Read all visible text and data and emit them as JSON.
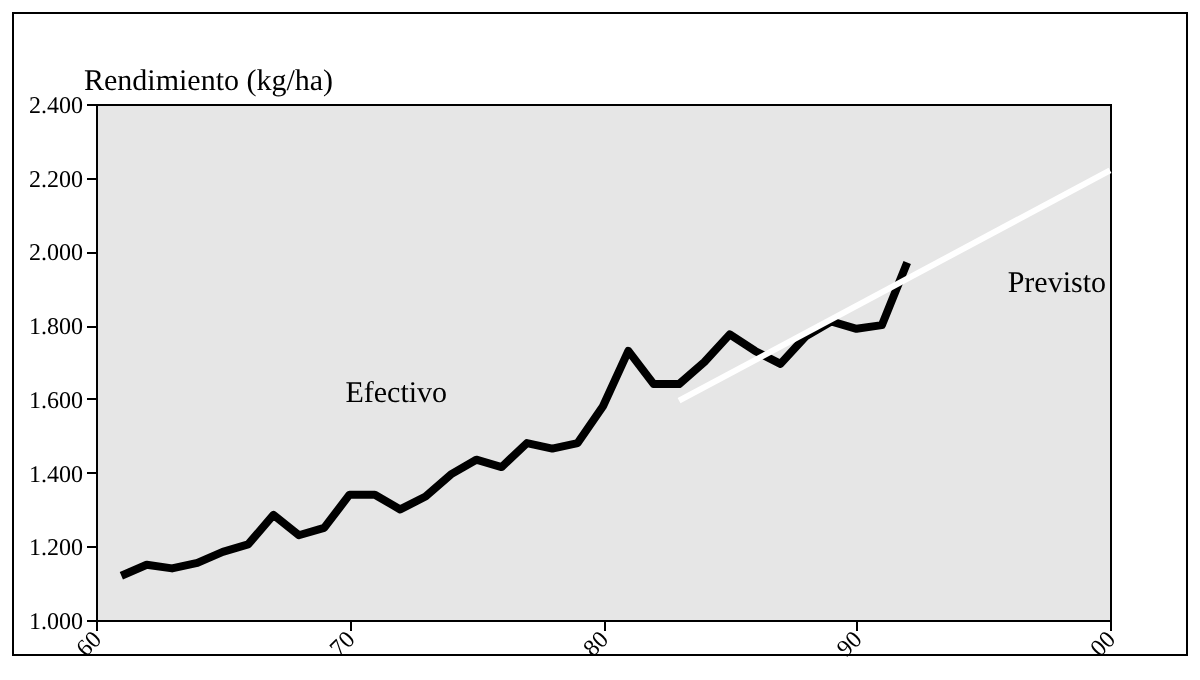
{
  "chart_data": {
    "type": "line",
    "ylabel": "Rendimiento (kg/ha)",
    "xlim": [
      1960,
      2000
    ],
    "xticks": [
      {
        "value": 1960,
        "label": "60"
      },
      {
        "value": 1970,
        "label": "70"
      },
      {
        "value": 1980,
        "label": "80"
      },
      {
        "value": 1990,
        "label": "90"
      },
      {
        "value": 2000,
        "label": "00"
      }
    ],
    "ylim": [
      1000,
      2400
    ],
    "yticks": [
      {
        "value": 1000,
        "label": "1.000"
      },
      {
        "value": 1200,
        "label": "1.200"
      },
      {
        "value": 1400,
        "label": "1.400"
      },
      {
        "value": 1600,
        "label": "1.600"
      },
      {
        "value": 1800,
        "label": "1.800"
      },
      {
        "value": 2000,
        "label": "2.000"
      },
      {
        "value": 2200,
        "label": "2.200"
      },
      {
        "value": 2400,
        "label": "2.400"
      }
    ],
    "grid": false,
    "line_style": "solid",
    "series": [
      {
        "name": "Efectivo",
        "color": "#000000",
        "x": [
          1961,
          1962,
          1963,
          1964,
          1965,
          1966,
          1967,
          1968,
          1969,
          1970,
          1971,
          1972,
          1973,
          1974,
          1975,
          1976,
          1977,
          1978,
          1979,
          1980,
          1981,
          1982,
          1983,
          1984,
          1985,
          1986,
          1987,
          1988,
          1989,
          1990,
          1991,
          1992
        ],
        "values": [
          1120,
          1150,
          1140,
          1155,
          1185,
          1205,
          1285,
          1230,
          1250,
          1340,
          1340,
          1300,
          1335,
          1395,
          1435,
          1415,
          1480,
          1465,
          1480,
          1580,
          1730,
          1640,
          1640,
          1700,
          1775,
          1730,
          1695,
          1770,
          1810,
          1790,
          1800,
          1970
        ]
      },
      {
        "name": "Previsto",
        "color": "#ffffff",
        "x": [
          1983,
          2000
        ],
        "values": [
          1595,
          2220
        ]
      }
    ]
  }
}
